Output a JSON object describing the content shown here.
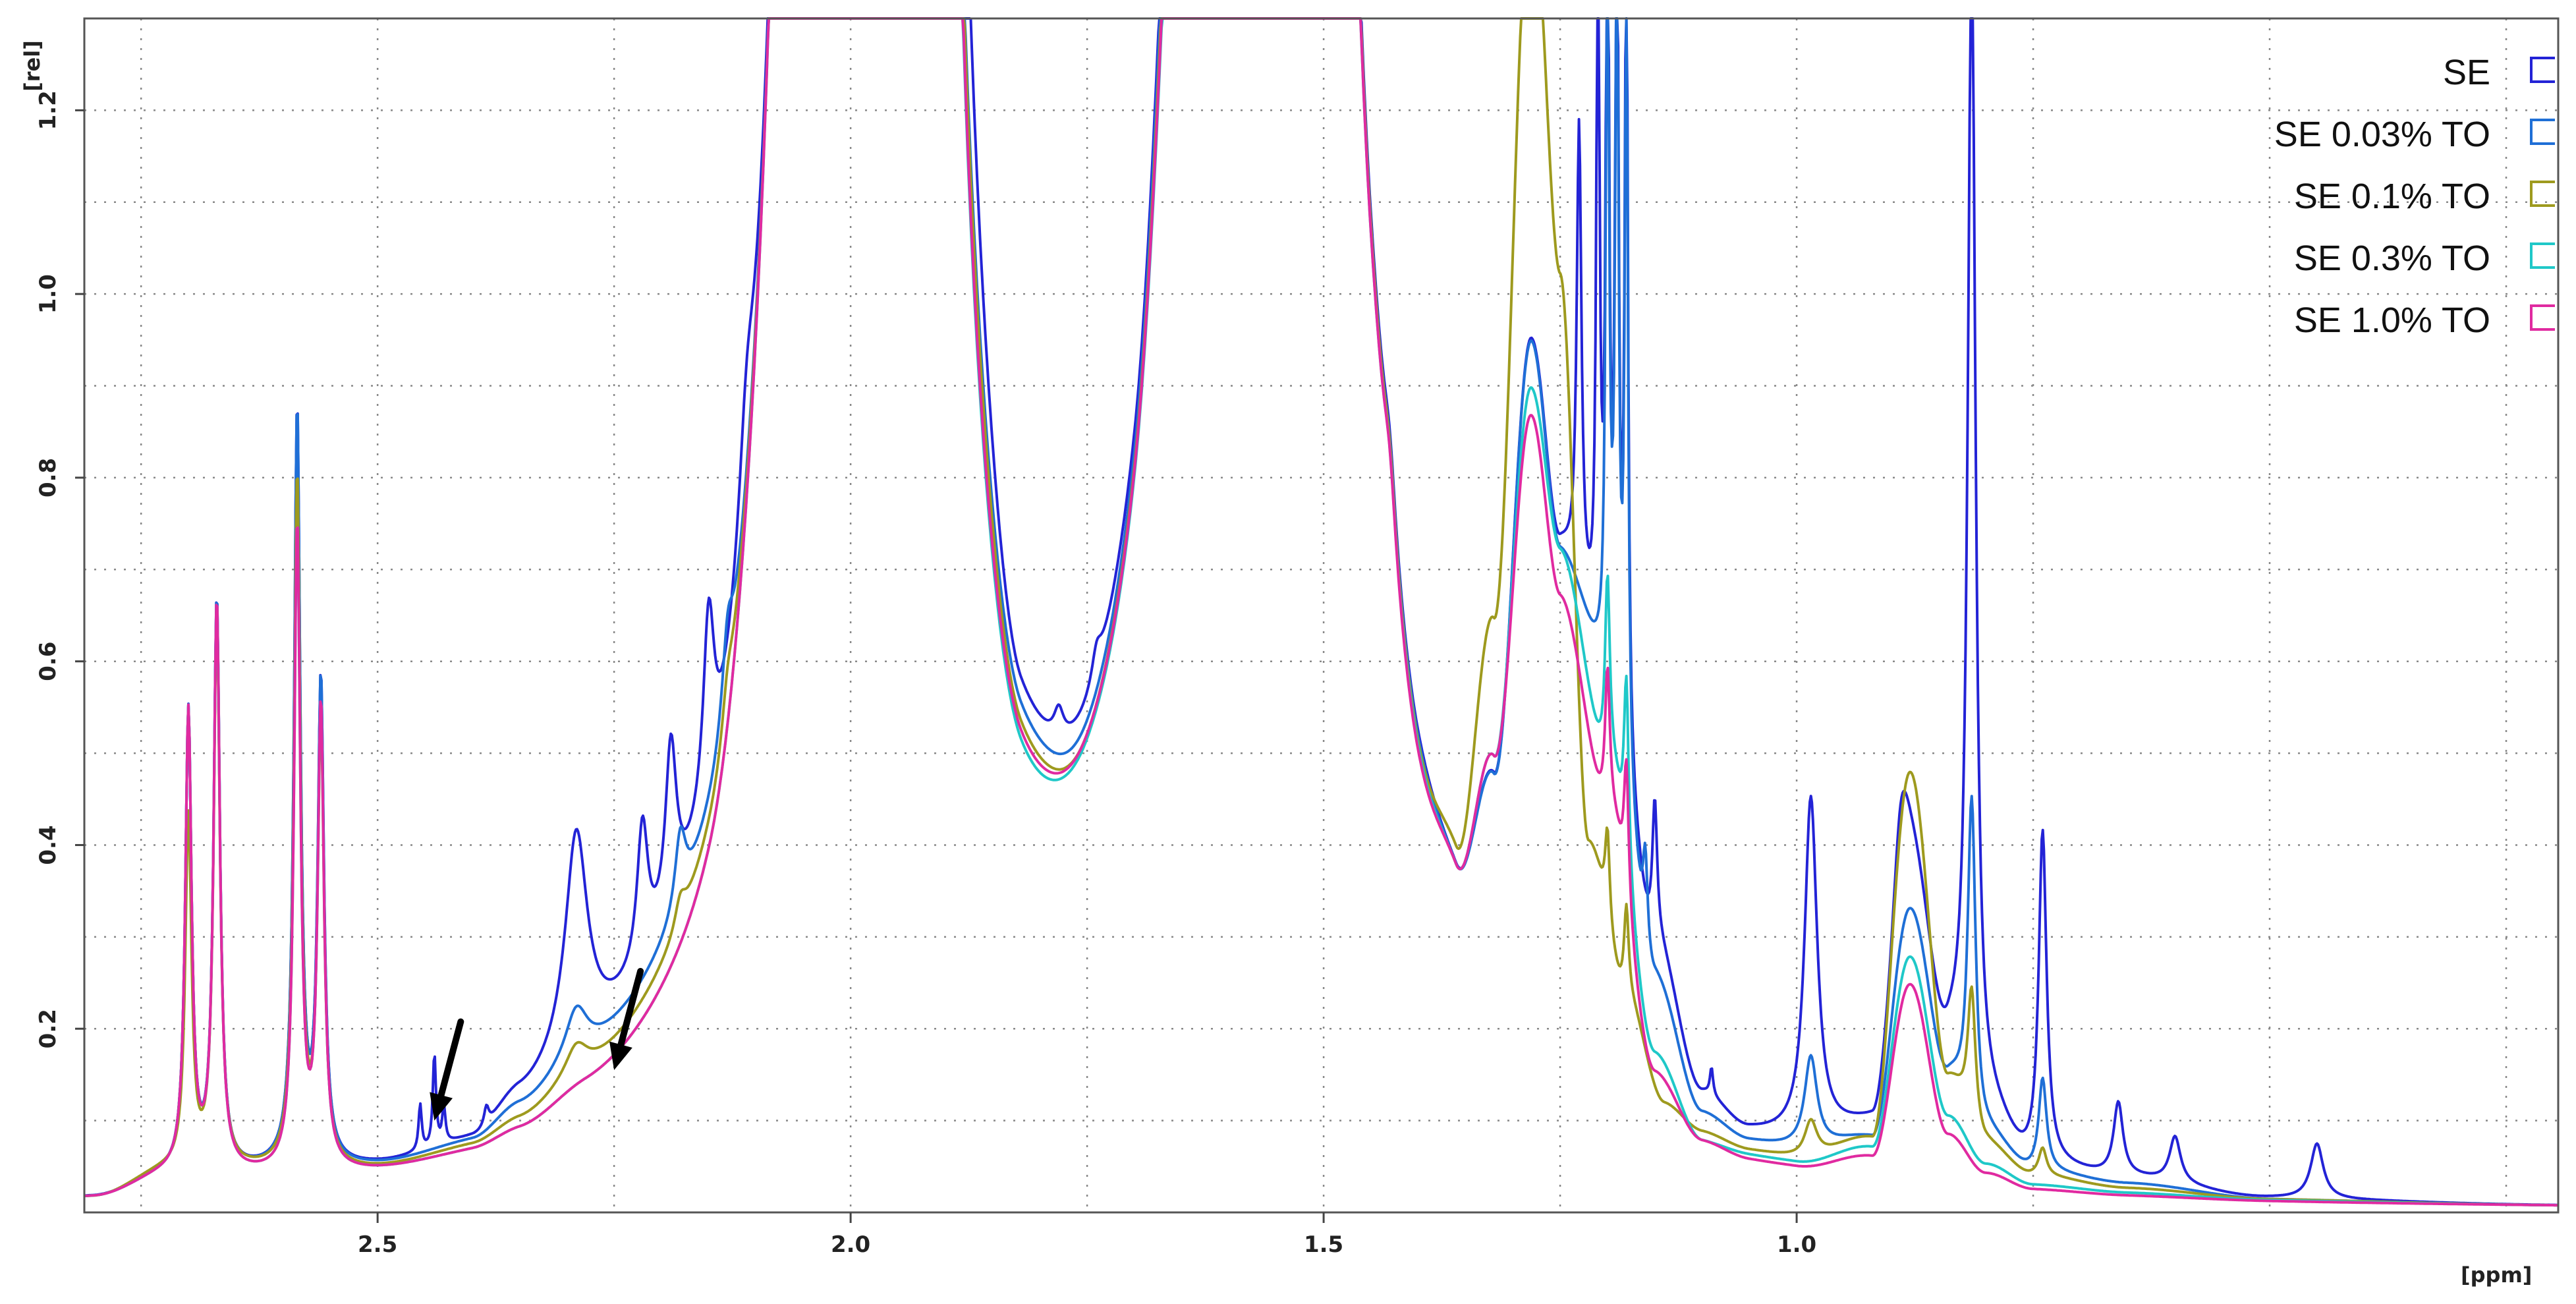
{
  "chart_data": {
    "type": "line",
    "xlabel": "[ppm]",
    "ylabel": "[rel]",
    "xlim": [
      2.81,
      0.195
    ],
    "ylim": [
      0,
      1.3
    ],
    "x_ticks": [
      {
        "v": 2.5,
        "label": "2.5"
      },
      {
        "v": 2.0,
        "label": "2.0"
      },
      {
        "v": 1.5,
        "label": "1.5"
      },
      {
        "v": 1.0,
        "label": "1.0"
      }
    ],
    "y_ticks": [
      {
        "v": 0.2,
        "label": "0.2"
      },
      {
        "v": 0.4,
        "label": "0.4"
      },
      {
        "v": 0.6,
        "label": "0.6"
      },
      {
        "v": 0.8,
        "label": "0.8"
      },
      {
        "v": 1.0,
        "label": "1.0"
      },
      {
        "v": 1.2,
        "label": "1.2"
      }
    ],
    "grid": true,
    "legend_position": "top-right",
    "annotations": [
      {
        "type": "arrow",
        "x": 2.44,
        "y": 0.1
      },
      {
        "type": "arrow",
        "x": 2.25,
        "y": 0.155
      }
    ],
    "series": [
      {
        "name": "SE",
        "color": "#2323d6",
        "baseline": [
          [
            2.8,
            0
          ],
          [
            2.72,
            0.02
          ],
          [
            2.6,
            0.02
          ],
          [
            2.5,
            0.015
          ],
          [
            2.4,
            0.025
          ],
          [
            2.35,
            0.06
          ],
          [
            2.28,
            0.09
          ],
          [
            2.15,
            0.12
          ],
          [
            2.07,
            0.2
          ],
          [
            1.95,
            0.4
          ],
          [
            1.88,
            0.3
          ],
          [
            1.82,
            0.12
          ],
          [
            1.75,
            0.085
          ],
          [
            1.7,
            0.09
          ],
          [
            1.66,
            0.2
          ],
          [
            1.6,
            0.35
          ],
          [
            1.5,
            0.32
          ],
          [
            1.45,
            0.17
          ],
          [
            1.4,
            0.09
          ],
          [
            1.36,
            0.1
          ],
          [
            1.32,
            0.28
          ],
          [
            1.28,
            0.8
          ],
          [
            1.25,
            0.6
          ],
          [
            1.2,
            0.5
          ],
          [
            1.15,
            0.22
          ],
          [
            1.1,
            0.07
          ],
          [
            1.05,
            0.04
          ],
          [
            1.0,
            0.04
          ],
          [
            0.92,
            0.06
          ],
          [
            0.88,
            0.35
          ],
          [
            0.84,
            0.15
          ],
          [
            0.8,
            0.08
          ],
          [
            0.75,
            0.03
          ],
          [
            0.65,
            0.02
          ],
          [
            0.5,
            0.003
          ],
          [
            0.2,
            0
          ]
        ],
        "peaks": [
          [
            2.7,
            0.5,
            0.004
          ],
          [
            2.67,
            0.62,
            0.004
          ],
          [
            2.585,
            0.82,
            0.004
          ],
          [
            2.56,
            0.52,
            0.004
          ],
          [
            2.455,
            0.05,
            0.002
          ],
          [
            2.44,
            0.1,
            0.002
          ],
          [
            2.43,
            0.04,
            0.002
          ],
          [
            2.385,
            0.02,
            0.003
          ],
          [
            2.29,
            0.23,
            0.014
          ],
          [
            2.22,
            0.15,
            0.007
          ],
          [
            2.19,
            0.18,
            0.007
          ],
          [
            2.15,
            0.2,
            0.007
          ],
          [
            2.11,
            0.11,
            0.01
          ],
          [
            1.89,
            0.3,
            0.01
          ],
          [
            1.78,
            0.03,
            0.006
          ],
          [
            1.74,
            0.03,
            0.006
          ],
          [
            1.43,
            0.06,
            0.008
          ],
          [
            1.23,
            0.5,
            0.003
          ],
          [
            1.21,
            0.8,
            0.002
          ],
          [
            1.2,
            0.9,
            0.002
          ],
          [
            1.19,
            0.9,
            0.002
          ],
          [
            1.18,
            0.9,
            0.002
          ],
          [
            1.15,
            0.15,
            0.003
          ],
          [
            1.09,
            0.03,
            0.002
          ],
          [
            0.985,
            0.37,
            0.008
          ],
          [
            0.89,
            0.1,
            0.01
          ],
          [
            0.815,
            1.25,
            0.005
          ],
          [
            0.74,
            0.36,
            0.005
          ],
          [
            0.66,
            0.08,
            0.006
          ],
          [
            0.6,
            0.05,
            0.007
          ],
          [
            0.45,
            0.06,
            0.008
          ]
        ]
      },
      {
        "name": "SE 0.03% TO",
        "color": "#1f6fd6",
        "baseline": [
          [
            2.8,
            0
          ],
          [
            2.72,
            0.02
          ],
          [
            2.6,
            0.02
          ],
          [
            2.5,
            0.015
          ],
          [
            2.4,
            0.025
          ],
          [
            2.35,
            0.05
          ],
          [
            2.28,
            0.08
          ],
          [
            2.15,
            0.11
          ],
          [
            2.07,
            0.2
          ],
          [
            1.95,
            0.4
          ],
          [
            1.88,
            0.22
          ],
          [
            1.82,
            0.1
          ],
          [
            1.75,
            0.065
          ],
          [
            1.7,
            0.07
          ],
          [
            1.66,
            0.18
          ],
          [
            1.6,
            0.35
          ],
          [
            1.5,
            0.3
          ],
          [
            1.45,
            0.16
          ],
          [
            1.4,
            0.085
          ],
          [
            1.36,
            0.1
          ],
          [
            1.32,
            0.28
          ],
          [
            1.28,
            0.8
          ],
          [
            1.25,
            0.6
          ],
          [
            1.2,
            0.5
          ],
          [
            1.15,
            0.18
          ],
          [
            1.1,
            0.05
          ],
          [
            1.05,
            0.03
          ],
          [
            1.0,
            0.03
          ],
          [
            0.92,
            0.05
          ],
          [
            0.88,
            0.3
          ],
          [
            0.84,
            0.12
          ],
          [
            0.8,
            0.06
          ],
          [
            0.75,
            0.025
          ],
          [
            0.65,
            0.015
          ],
          [
            0.5,
            0.002
          ],
          [
            0.2,
            0
          ]
        ],
        "peaks": [
          [
            2.7,
            0.5,
            0.004
          ],
          [
            2.67,
            0.62,
            0.004
          ],
          [
            2.585,
            0.82,
            0.004
          ],
          [
            2.56,
            0.52,
            0.004
          ],
          [
            2.29,
            0.05,
            0.014
          ],
          [
            2.18,
            0.08,
            0.007
          ],
          [
            2.13,
            0.08,
            0.007
          ],
          [
            1.43,
            0.06,
            0.008
          ],
          [
            1.2,
            0.85,
            0.002
          ],
          [
            1.19,
            0.85,
            0.002
          ],
          [
            1.18,
            0.85,
            0.002
          ],
          [
            1.16,
            0.1,
            0.003
          ],
          [
            0.985,
            0.1,
            0.008
          ],
          [
            0.815,
            0.35,
            0.005
          ],
          [
            0.74,
            0.1,
            0.005
          ]
        ]
      },
      {
        "name": "SE 0.1% TO",
        "color": "#9e9a1e",
        "baseline": [
          [
            2.8,
            0
          ],
          [
            2.72,
            0.025
          ],
          [
            2.6,
            0.02
          ],
          [
            2.5,
            0.012
          ],
          [
            2.4,
            0.02
          ],
          [
            2.35,
            0.035
          ],
          [
            2.28,
            0.06
          ],
          [
            2.15,
            0.09
          ],
          [
            2.07,
            0.2
          ],
          [
            1.95,
            0.4
          ],
          [
            1.88,
            0.2
          ],
          [
            1.82,
            0.08
          ],
          [
            1.75,
            0.05
          ],
          [
            1.7,
            0.055
          ],
          [
            1.66,
            0.15
          ],
          [
            1.6,
            0.35
          ],
          [
            1.5,
            0.3
          ],
          [
            1.45,
            0.16
          ],
          [
            1.4,
            0.08
          ],
          [
            1.36,
            0.12
          ],
          [
            1.32,
            0.45
          ],
          [
            1.28,
            1.3
          ],
          [
            1.25,
            0.9
          ],
          [
            1.22,
            0.3
          ],
          [
            1.18,
            0.15
          ],
          [
            1.14,
            0.05
          ],
          [
            1.1,
            0.03
          ],
          [
            1.05,
            0.02
          ],
          [
            1.0,
            0.02
          ],
          [
            0.92,
            0.05
          ],
          [
            0.88,
            0.45
          ],
          [
            0.84,
            0.12
          ],
          [
            0.8,
            0.05
          ],
          [
            0.75,
            0.02
          ],
          [
            0.65,
            0.01
          ],
          [
            0.5,
            0.002
          ],
          [
            0.2,
            0
          ]
        ],
        "peaks": [
          [
            2.7,
            0.38,
            0.004
          ],
          [
            2.67,
            0.6,
            0.004
          ],
          [
            2.585,
            0.75,
            0.004
          ],
          [
            2.56,
            0.48,
            0.004
          ],
          [
            2.29,
            0.03,
            0.014
          ],
          [
            2.18,
            0.03,
            0.007
          ],
          [
            2.13,
            0.04,
            0.007
          ],
          [
            1.43,
            0.06,
            0.008
          ],
          [
            1.2,
            0.1,
            0.003
          ],
          [
            1.18,
            0.1,
            0.003
          ],
          [
            0.985,
            0.04,
            0.008
          ],
          [
            0.815,
            0.15,
            0.005
          ],
          [
            0.74,
            0.03,
            0.005
          ]
        ]
      },
      {
        "name": "SE 0.3% TO",
        "color": "#1fc8c8",
        "baseline": [
          [
            2.8,
            0
          ],
          [
            2.72,
            0.02
          ],
          [
            2.6,
            0.015
          ],
          [
            2.5,
            0.01
          ],
          [
            2.4,
            0.015
          ],
          [
            2.35,
            0.025
          ],
          [
            2.28,
            0.045
          ],
          [
            2.15,
            0.065
          ],
          [
            2.07,
            0.2
          ],
          [
            1.95,
            0.4
          ],
          [
            1.88,
            0.15
          ],
          [
            1.82,
            0.06
          ],
          [
            1.75,
            0.045
          ],
          [
            1.7,
            0.045
          ],
          [
            1.66,
            0.12
          ],
          [
            1.6,
            0.35
          ],
          [
            1.5,
            0.3
          ],
          [
            1.45,
            0.15
          ],
          [
            1.4,
            0.075
          ],
          [
            1.36,
            0.1
          ],
          [
            1.32,
            0.3
          ],
          [
            1.28,
            0.75
          ],
          [
            1.25,
            0.6
          ],
          [
            1.2,
            0.4
          ],
          [
            1.15,
            0.1
          ],
          [
            1.1,
            0.02
          ],
          [
            1.05,
            0.015
          ],
          [
            1.0,
            0.015
          ],
          [
            0.92,
            0.04
          ],
          [
            0.88,
            0.25
          ],
          [
            0.84,
            0.08
          ],
          [
            0.8,
            0.03
          ],
          [
            0.75,
            0.01
          ],
          [
            0.65,
            0.005
          ],
          [
            0.5,
            0.001
          ],
          [
            0.2,
            0
          ]
        ],
        "peaks": [
          [
            2.7,
            0.5,
            0.004
          ],
          [
            2.67,
            0.62,
            0.004
          ],
          [
            2.585,
            0.7,
            0.004
          ],
          [
            2.56,
            0.5,
            0.004
          ],
          [
            1.43,
            0.06,
            0.008
          ],
          [
            1.2,
            0.2,
            0.003
          ],
          [
            1.18,
            0.2,
            0.003
          ]
        ]
      },
      {
        "name": "SE 1.0% TO",
        "color": "#e02aa0",
        "baseline": [
          [
            2.8,
            0
          ],
          [
            2.72,
            0.02
          ],
          [
            2.6,
            0.015
          ],
          [
            2.5,
            0.01
          ],
          [
            2.4,
            0.015
          ],
          [
            2.35,
            0.025
          ],
          [
            2.28,
            0.045
          ],
          [
            2.15,
            0.065
          ],
          [
            2.07,
            0.2
          ],
          [
            1.95,
            0.4
          ],
          [
            1.88,
            0.16
          ],
          [
            1.82,
            0.07
          ],
          [
            1.75,
            0.05
          ],
          [
            1.7,
            0.05
          ],
          [
            1.66,
            0.13
          ],
          [
            1.6,
            0.35
          ],
          [
            1.5,
            0.3
          ],
          [
            1.45,
            0.15
          ],
          [
            1.4,
            0.07
          ],
          [
            1.36,
            0.1
          ],
          [
            1.32,
            0.3
          ],
          [
            1.28,
            0.72
          ],
          [
            1.25,
            0.55
          ],
          [
            1.2,
            0.35
          ],
          [
            1.15,
            0.08
          ],
          [
            1.1,
            0.02
          ],
          [
            1.05,
            0.01
          ],
          [
            1.0,
            0.01
          ],
          [
            0.92,
            0.03
          ],
          [
            0.88,
            0.22
          ],
          [
            0.84,
            0.06
          ],
          [
            0.8,
            0.02
          ],
          [
            0.75,
            0.005
          ],
          [
            0.65,
            0.002
          ],
          [
            0.5,
            0
          ],
          [
            0.2,
            0
          ]
        ],
        "peaks": [
          [
            2.7,
            0.5,
            0.004
          ],
          [
            2.67,
            0.62,
            0.004
          ],
          [
            2.585,
            0.7,
            0.004
          ],
          [
            2.56,
            0.5,
            0.004
          ],
          [
            1.43,
            0.06,
            0.008
          ],
          [
            1.2,
            0.15,
            0.003
          ],
          [
            1.18,
            0.15,
            0.003
          ]
        ]
      }
    ]
  }
}
